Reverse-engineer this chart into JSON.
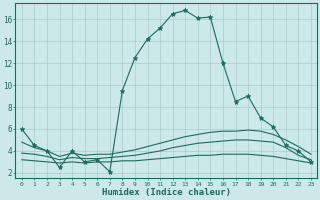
{
  "title": "",
  "xlabel": "Humidex (Indice chaleur)",
  "ylabel": "",
  "bg_color": "#cce8e8",
  "line_color": "#1a6b5e",
  "grid_color": "#aacccc",
  "xlim": [
    -0.5,
    23.5
  ],
  "ylim": [
    1.5,
    17.5
  ],
  "xticks": [
    0,
    1,
    2,
    3,
    4,
    5,
    6,
    7,
    8,
    9,
    10,
    11,
    12,
    13,
    14,
    15,
    16,
    17,
    18,
    19,
    20,
    21,
    22,
    23
  ],
  "yticks": [
    2,
    4,
    6,
    8,
    10,
    12,
    14,
    16
  ],
  "series1_x": [
    0,
    1,
    2,
    3,
    4,
    5,
    6,
    7,
    8,
    9,
    10,
    11,
    12,
    13,
    14,
    15,
    16,
    17,
    18,
    19,
    20,
    21,
    22,
    23
  ],
  "series1_y": [
    6.0,
    4.5,
    4.0,
    2.5,
    4.0,
    3.0,
    3.2,
    2.1,
    9.5,
    12.5,
    14.2,
    15.2,
    16.5,
    16.8,
    16.1,
    16.2,
    12.0,
    8.5,
    9.0,
    7.0,
    6.2,
    4.5,
    4.0,
    3.0
  ],
  "series2_x": [
    0,
    1,
    2,
    3,
    4,
    5,
    6,
    7,
    8,
    9,
    10,
    11,
    12,
    13,
    14,
    15,
    16,
    17,
    18,
    19,
    20,
    21,
    22,
    23
  ],
  "series2_y": [
    4.8,
    4.3,
    4.0,
    3.5,
    3.8,
    3.6,
    3.7,
    3.7,
    3.9,
    4.1,
    4.4,
    4.7,
    5.0,
    5.3,
    5.5,
    5.7,
    5.8,
    5.8,
    5.9,
    5.8,
    5.5,
    5.0,
    4.4,
    3.7
  ],
  "series3_x": [
    0,
    1,
    2,
    3,
    4,
    5,
    6,
    7,
    8,
    9,
    10,
    11,
    12,
    13,
    14,
    15,
    16,
    17,
    18,
    19,
    20,
    21,
    22,
    23
  ],
  "series3_y": [
    3.8,
    3.7,
    3.5,
    3.2,
    3.4,
    3.3,
    3.3,
    3.4,
    3.5,
    3.6,
    3.8,
    4.0,
    4.3,
    4.5,
    4.7,
    4.8,
    4.9,
    5.0,
    5.0,
    4.9,
    4.8,
    4.3,
    3.6,
    3.2
  ],
  "series4_x": [
    0,
    1,
    2,
    3,
    4,
    5,
    6,
    7,
    8,
    9,
    10,
    11,
    12,
    13,
    14,
    15,
    16,
    17,
    18,
    19,
    20,
    21,
    22,
    23
  ],
  "series4_y": [
    3.2,
    3.1,
    3.0,
    2.9,
    3.0,
    2.9,
    3.0,
    3.0,
    3.1,
    3.1,
    3.2,
    3.3,
    3.4,
    3.5,
    3.6,
    3.6,
    3.7,
    3.7,
    3.7,
    3.6,
    3.5,
    3.3,
    3.1,
    2.9
  ]
}
